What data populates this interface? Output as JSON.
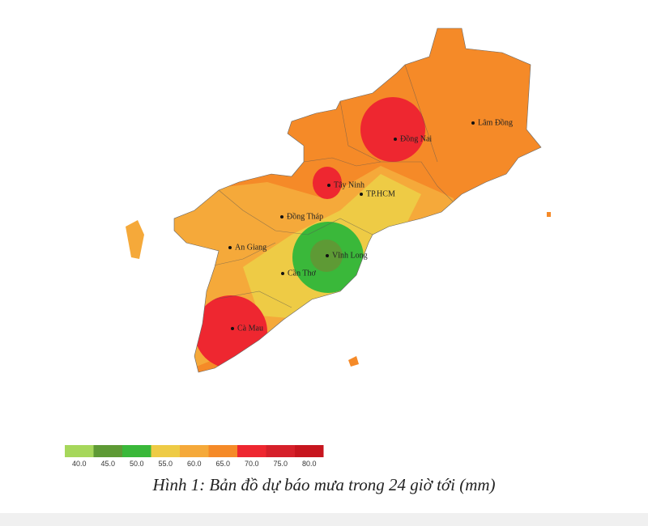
{
  "places": [
    "Lâm Đồng",
    "Đồng Nai",
    "Tây Ninh",
    "TP.HCM",
    "Đồng Tháp",
    "An Giang",
    "Vĩnh Long",
    "Cần Thơ",
    "Cà Mau"
  ],
  "legend": {
    "colors": [
      "#a6d75b",
      "#5e9a35",
      "#3ab83a",
      "#eecb45",
      "#f5a93a",
      "#f58a28",
      "#ee2730",
      "#d6202a",
      "#c7151e"
    ],
    "labels": [
      "40.0",
      "45.0",
      "50.0",
      "55.0",
      "60.0",
      "65.0",
      "70.0",
      "75.0",
      "80.0"
    ]
  },
  "caption": "Hình 1: Bản đồ dự báo mưa trong 24 giờ tới (mm)"
}
